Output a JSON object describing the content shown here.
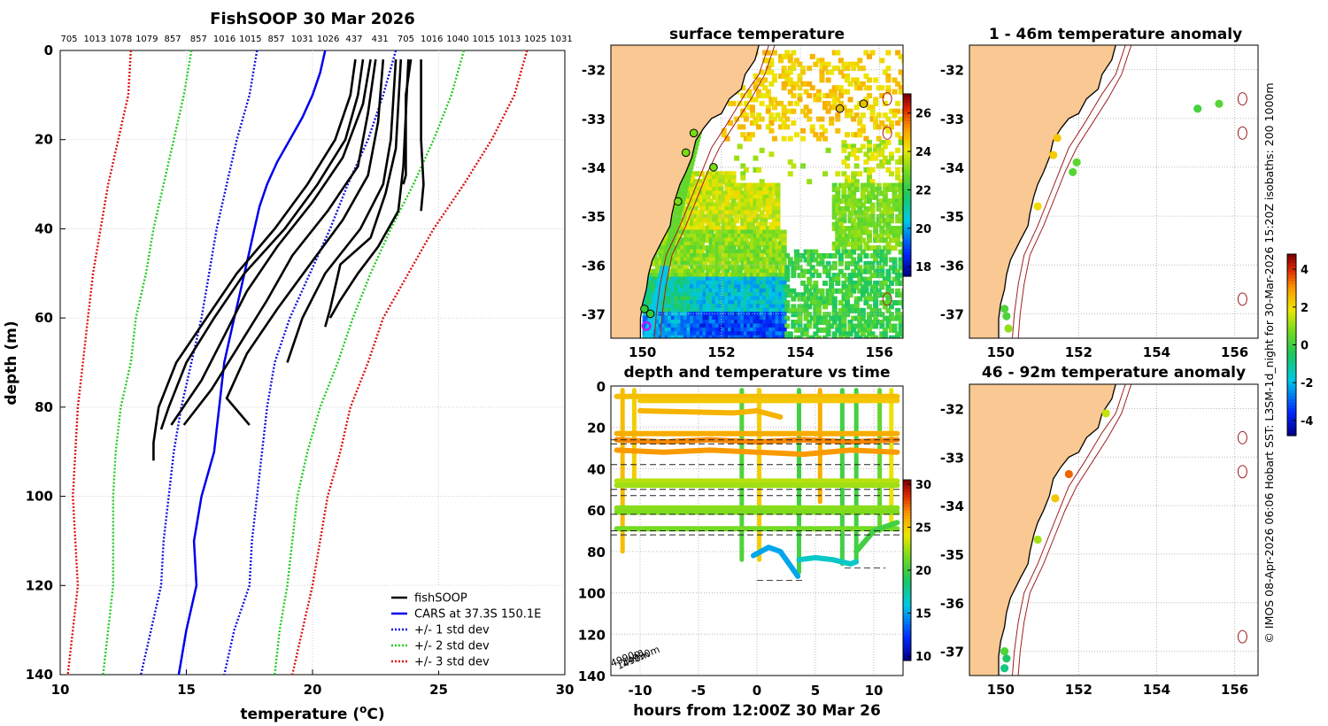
{
  "chart_data": [
    {
      "type": "line",
      "title": "FishSOOP 30 Mar 2026",
      "xlabel": "temperature (°C)",
      "ylabel": "depth (m)",
      "xlim": [
        10,
        30
      ],
      "ylim": [
        140,
        0
      ],
      "xticks": [
        10,
        15,
        20,
        25,
        30
      ],
      "yticks": [
        0,
        20,
        40,
        60,
        80,
        100,
        120,
        140
      ],
      "top_labels": [
        "705",
        "1013",
        "1078",
        "1079",
        "857",
        "857",
        "1016",
        "1015",
        "857",
        "1031",
        "1026",
        "437",
        "431",
        "705",
        "1016",
        "1040",
        "1015",
        "1013",
        "1025",
        "1031"
      ],
      "legend": {
        "position": "bottom-right",
        "entries": [
          "fishSOOP",
          "CARS at 37.3S 150.1E",
          "+/- 1 std dev",
          "+/- 2 std dev",
          "+/- 3 std dev"
        ]
      },
      "cars_mean": {
        "name": "CARS at 37.3S 150.1E",
        "color": "#0000ee",
        "depth": [
          0,
          5,
          10,
          15,
          20,
          25,
          30,
          35,
          40,
          45,
          50,
          55,
          60,
          65,
          70,
          75,
          80,
          85,
          90,
          100,
          110,
          120,
          130,
          140
        ],
        "temp": [
          20.5,
          20.3,
          20.0,
          19.6,
          19.1,
          18.6,
          18.2,
          17.9,
          17.7,
          17.5,
          17.3,
          17.1,
          16.9,
          16.7,
          16.5,
          16.4,
          16.3,
          16.2,
          16.1,
          15.6,
          15.3,
          15.4,
          15.0,
          14.7
        ]
      },
      "std_series": [
        {
          "name": "-1 std dev",
          "color": "#1010dd",
          "depth": [
            0,
            10,
            20,
            30,
            40,
            50,
            60,
            70,
            80,
            90,
            100,
            110,
            120,
            130,
            140
          ],
          "temp": [
            17.8,
            17.5,
            17.0,
            16.6,
            16.2,
            15.9,
            15.6,
            15.2,
            14.8,
            14.5,
            14.3,
            14.1,
            14.0,
            13.6,
            13.2
          ]
        },
        {
          "name": "+1 std dev",
          "color": "#1010dd",
          "depth": [
            0,
            10,
            20,
            30,
            40,
            50,
            60,
            70,
            80,
            90,
            100,
            110,
            120,
            130,
            140
          ],
          "temp": [
            23.3,
            22.8,
            22.2,
            21.4,
            20.7,
            19.9,
            19.1,
            18.5,
            18.2,
            18.0,
            17.8,
            17.6,
            17.5,
            16.9,
            16.5
          ]
        },
        {
          "name": "-2 std dev",
          "color": "#22cc22",
          "depth": [
            0,
            10,
            20,
            30,
            40,
            50,
            60,
            70,
            80,
            90,
            100,
            110,
            120,
            130,
            140
          ],
          "temp": [
            15.2,
            14.9,
            14.5,
            14.1,
            13.7,
            13.4,
            13.0,
            12.8,
            12.4,
            12.2,
            12.1,
            12.1,
            12.1,
            11.9,
            11.7
          ]
        },
        {
          "name": "+2 std dev",
          "color": "#22cc22",
          "depth": [
            0,
            10,
            20,
            30,
            40,
            50,
            60,
            70,
            80,
            90,
            100,
            110,
            120,
            130,
            140
          ],
          "temp": [
            26.0,
            25.5,
            24.8,
            24.0,
            23.1,
            22.3,
            21.6,
            21.0,
            20.3,
            19.8,
            19.4,
            19.2,
            19.0,
            18.7,
            18.5
          ]
        },
        {
          "name": "-3 std dev",
          "color": "#dd1111",
          "depth": [
            0,
            10,
            20,
            30,
            40,
            50,
            60,
            70,
            80,
            90,
            100,
            110,
            120,
            130,
            140
          ],
          "temp": [
            12.8,
            12.7,
            12.3,
            11.9,
            11.6,
            11.3,
            11.1,
            10.9,
            10.7,
            10.6,
            10.5,
            10.6,
            10.7,
            10.5,
            10.3
          ]
        },
        {
          "name": "+3 std dev",
          "color": "#dd1111",
          "depth": [
            0,
            10,
            20,
            30,
            40,
            50,
            60,
            70,
            80,
            90,
            100,
            110,
            120,
            130,
            140
          ],
          "temp": [
            28.5,
            28.0,
            27.1,
            26.0,
            24.8,
            23.8,
            22.8,
            22.2,
            21.5,
            21.1,
            20.6,
            20.3,
            20.0,
            19.6,
            19.2
          ]
        }
      ],
      "fishsoop_profiles": [
        {
          "depth": [
            2,
            10,
            20,
            30,
            40,
            50,
            60,
            70,
            80,
            88,
            92
          ],
          "temp": [
            21.7,
            21.5,
            20.9,
            19.8,
            18.5,
            17.0,
            15.8,
            14.6,
            13.9,
            13.7,
            13.7
          ]
        },
        {
          "depth": [
            2,
            10,
            20,
            30,
            40,
            50,
            60,
            70,
            80,
            85
          ],
          "temp": [
            22.0,
            21.8,
            21.3,
            20.2,
            18.9,
            17.3,
            16.1,
            15.0,
            14.3,
            14.0
          ]
        },
        {
          "depth": [
            2,
            12,
            24,
            34,
            44,
            54,
            64,
            74,
            84
          ],
          "temp": [
            22.3,
            22.0,
            21.2,
            20.0,
            18.6,
            17.4,
            16.5,
            15.6,
            14.4
          ]
        },
        {
          "depth": [
            2,
            14,
            26,
            36,
            46,
            56,
            66,
            76,
            84
          ],
          "temp": [
            22.5,
            22.2,
            21.8,
            20.6,
            19.2,
            18.2,
            17.1,
            16.0,
            14.9
          ]
        },
        {
          "depth": [
            2,
            16,
            28,
            38,
            48,
            58,
            68,
            78,
            84
          ],
          "temp": [
            22.8,
            22.6,
            22.2,
            21.2,
            19.9,
            18.6,
            17.4,
            16.6,
            17.5
          ]
        },
        {
          "depth": [
            2,
            20,
            30,
            40,
            50,
            60,
            70
          ],
          "temp": [
            23.3,
            23.1,
            22.8,
            21.9,
            20.5,
            19.6,
            19.0
          ]
        },
        {
          "depth": [
            2,
            22,
            32,
            42,
            48,
            58,
            62
          ],
          "temp": [
            23.5,
            23.3,
            22.9,
            22.3,
            21.1,
            20.7,
            20.5
          ]
        },
        {
          "depth": [
            2,
            26,
            36,
            44,
            50,
            56,
            60
          ],
          "temp": [
            23.8,
            23.6,
            23.4,
            22.6,
            21.8,
            21.1,
            20.7
          ]
        },
        {
          "depth": [
            2,
            20,
            30,
            36
          ],
          "temp": [
            24.3,
            24.3,
            24.4,
            24.3
          ]
        },
        {
          "depth": [
            2,
            10,
            20,
            28,
            30
          ],
          "temp": [
            23.9,
            23.7,
            23.7,
            23.7,
            23.6
          ]
        }
      ]
    },
    {
      "type": "heatmap",
      "title": "surface temperature",
      "xticks": [
        150,
        152,
        154,
        156
      ],
      "yticks": [
        -32,
        -33,
        -34,
        -35,
        -36,
        -37
      ],
      "xlim": [
        149.2,
        156.6
      ],
      "ylim": [
        -37.5,
        -31.5
      ],
      "colorbar": {
        "ticks": [
          18,
          20,
          22,
          24,
          26
        ],
        "range": [
          17.5,
          27
        ]
      },
      "stations": [
        {
          "lon": 151.3,
          "lat": -33.3,
          "color": "#77dd11"
        },
        {
          "lon": 151.1,
          "lat": -33.7,
          "color": "#77dd11"
        },
        {
          "lon": 151.8,
          "lat": -34.0,
          "color": "#77dd11"
        },
        {
          "lon": 150.9,
          "lat": -34.7,
          "color": "#77dd11"
        },
        {
          "lon": 150.05,
          "lat": -36.9,
          "color": "#33cc33"
        },
        {
          "lon": 150.2,
          "lat": -37.0,
          "color": "#33cc33"
        },
        {
          "lon": 155.0,
          "lat": -32.8,
          "color": "#e8c000"
        },
        {
          "lon": 155.6,
          "lat": -32.7,
          "color": "#e8c000"
        },
        {
          "lon": 150.1,
          "lat": -37.25,
          "color": "#aa22ff"
        }
      ]
    },
    {
      "type": "scatter",
      "title": "1 - 46m temperature anomaly",
      "xticks": [
        150,
        152,
        154,
        156
      ],
      "yticks": [
        -32,
        -33,
        -34,
        -35,
        -36,
        -37
      ],
      "xlim": [
        149.2,
        156.6
      ],
      "ylim": [
        -37.5,
        -31.5
      ],
      "points": [
        {
          "lon": 155.05,
          "lat": -32.8,
          "anomaly": 0.1
        },
        {
          "lon": 155.6,
          "lat": -32.7,
          "anomaly": 0.3
        },
        {
          "lon": 151.45,
          "lat": -33.4,
          "anomaly": 2.4
        },
        {
          "lon": 151.35,
          "lat": -33.75,
          "anomaly": 2.3
        },
        {
          "lon": 151.95,
          "lat": -33.9,
          "anomaly": 0.4
        },
        {
          "lon": 151.85,
          "lat": -34.1,
          "anomaly": 0.3
        },
        {
          "lon": 150.95,
          "lat": -34.8,
          "anomaly": 2.1
        },
        {
          "lon": 150.1,
          "lat": -36.9,
          "anomaly": 0.2
        },
        {
          "lon": 150.15,
          "lat": -37.05,
          "anomaly": 0.2
        },
        {
          "lon": 150.2,
          "lat": -37.3,
          "anomaly": 1.0
        }
      ]
    },
    {
      "type": "scatter",
      "title": "46 - 92m temperature anomaly",
      "xticks": [
        150,
        152,
        154,
        156
      ],
      "yticks": [
        -32,
        -33,
        -34,
        -35,
        -36,
        -37
      ],
      "xlim": [
        149.2,
        156.6
      ],
      "ylim": [
        -37.5,
        -31.5
      ],
      "colorbar": {
        "ticks": [
          4,
          2,
          0,
          -2,
          -4
        ],
        "range": [
          -4.8,
          4.8
        ]
      },
      "points": [
        {
          "lon": 152.7,
          "lat": -32.1,
          "anomaly": 1.5
        },
        {
          "lon": 151.75,
          "lat": -33.35,
          "anomaly": 3.5
        },
        {
          "lon": 151.4,
          "lat": -33.85,
          "anomaly": 2.4
        },
        {
          "lon": 150.95,
          "lat": -34.7,
          "anomaly": 1.2
        },
        {
          "lon": 150.1,
          "lat": -37.0,
          "anomaly": 0.2
        },
        {
          "lon": 150.15,
          "lat": -37.15,
          "anomaly": -0.6
        },
        {
          "lon": 150.1,
          "lat": -37.35,
          "anomaly": -0.9
        }
      ]
    },
    {
      "type": "scatter",
      "title": "depth and temperature vs time",
      "xlabel": "hours from 12:00Z 30 Mar 26",
      "xlim": [
        -12.5,
        12.5
      ],
      "ylim": [
        140,
        0
      ],
      "xticks": [
        -10,
        -5,
        0,
        5,
        10
      ],
      "yticks": [
        0,
        20,
        40,
        60,
        80,
        100,
        120,
        140
      ],
      "xtick_labels": [
        "-10",
        "-5",
        "0",
        "5",
        "10"
      ],
      "colorbar": {
        "ticks": [
          10,
          15,
          20,
          25,
          30
        ],
        "range": [
          9.5,
          30.5
        ]
      },
      "corner_labels": [
        "4990m",
        "1490m",
        "14990m"
      ],
      "dashed_depths": [
        26,
        28,
        38,
        50,
        53,
        62,
        70,
        72
      ],
      "short_dashes": [
        {
          "x0": 7.5,
          "x1": 11.0,
          "depth": 88
        },
        {
          "x0": 0.0,
          "x1": 4.0,
          "depth": 94
        }
      ],
      "tracks": [
        {
          "x": [
            -12.0,
            12.0
          ],
          "depth": [
            5,
            5
          ],
          "temp": 25.5
        },
        {
          "x": [
            -10.0,
            12.0
          ],
          "depth": [
            7,
            7
          ],
          "temp": 25.2
        },
        {
          "x": [
            -10.0,
            -2.0,
            0.0,
            2.0
          ],
          "depth": [
            12,
            13,
            12,
            15
          ],
          "temp": 25.8
        },
        {
          "x": [
            -12.0,
            12.0
          ],
          "depth": [
            23,
            23
          ],
          "temp": 26.0
        },
        {
          "x": [
            -12.0,
            -8.0,
            -4.0,
            0.0,
            4.0,
            8.0,
            12.0
          ],
          "depth": [
            26,
            27,
            26,
            27,
            26,
            27,
            26
          ],
          "temp": 27.0
        },
        {
          "x": [
            -12.0,
            -8.0,
            -4.0,
            0.0,
            4.0,
            8.0,
            12.0
          ],
          "depth": [
            31,
            32,
            31,
            32,
            33,
            31,
            32
          ],
          "temp": 26.6
        },
        {
          "x": [
            -12.0,
            12.0
          ],
          "depth": [
            46,
            46
          ],
          "temp": 23.0
        },
        {
          "x": [
            -12.0,
            12.0
          ],
          "depth": [
            48,
            48
          ],
          "temp": 22.5
        },
        {
          "x": [
            -12.0,
            12.0
          ],
          "depth": [
            59,
            59
          ],
          "temp": 22.0
        },
        {
          "x": [
            -12.0,
            12.0
          ],
          "depth": [
            61,
            61
          ],
          "temp": 21.8
        },
        {
          "x": [
            -12.0,
            12.0
          ],
          "depth": [
            69,
            69
          ],
          "temp": 21.5
        },
        {
          "x": [
            -0.3,
            1.0,
            2.0,
            3.0,
            3.5
          ],
          "depth": [
            82,
            78,
            80,
            88,
            92
          ],
          "temp": 15.0
        },
        {
          "x": [
            3.6,
            5.0,
            6.5,
            8.0,
            8.5
          ],
          "depth": [
            84,
            83,
            84,
            86,
            85
          ],
          "temp": 16.5
        },
        {
          "x": [
            8.5,
            10.0,
            12.0
          ],
          "depth": [
            80,
            70,
            66
          ],
          "temp": 20.0
        }
      ]
    }
  ],
  "side_text": "© IMOS 08-Apr-2026 06:06 Hobart SST: L3SM-1d_night for 30-Mar-2026 15:20Z isobaths: 200  1000m"
}
